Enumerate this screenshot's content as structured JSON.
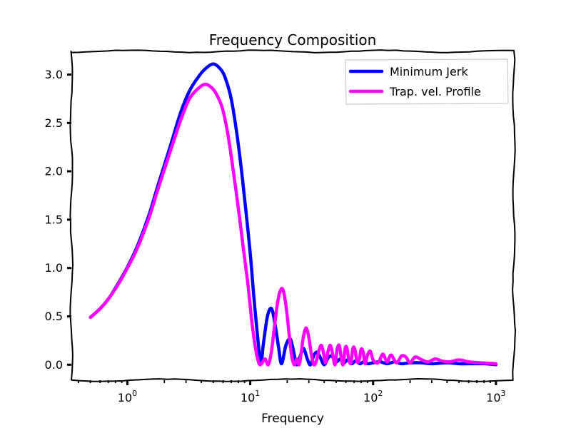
{
  "chart_data": {
    "type": "line",
    "title": "Frequency Composition",
    "xlabel": "Frequency",
    "ylabel": "",
    "xscale": "log",
    "xlim": [
      0.35,
      1400
    ],
    "ylim": [
      -0.16,
      3.24
    ],
    "x_tick_labels": [
      {
        "base": "10",
        "exp": "0"
      },
      {
        "base": "10",
        "exp": "1"
      },
      {
        "base": "10",
        "exp": "2"
      },
      {
        "base": "10",
        "exp": "3"
      }
    ],
    "y_ticks": [
      0.0,
      0.5,
      1.0,
      1.5,
      2.0,
      2.5,
      3.0
    ],
    "y_tick_labels": [
      "0.0",
      "0.5",
      "1.0",
      "1.5",
      "2.0",
      "2.5",
      "3.0"
    ],
    "legend_position": "top-right",
    "series": [
      {
        "name": "Minimum Jerk",
        "color": "#0000ff",
        "x": [
          0.5,
          0.6,
          0.7,
          0.85,
          1.0,
          1.2,
          1.5,
          1.8,
          2.2,
          2.7,
          3.2,
          3.8,
          4.4,
          5.0,
          5.6,
          6.2,
          7.0,
          7.8,
          8.5,
          9.2,
          10.0,
          10.7,
          11.5,
          12.2,
          12.8,
          13.8,
          14.9,
          16.0,
          17.0,
          18.0,
          19.5,
          21.0,
          22.0,
          23.0,
          24.0,
          26.0,
          27.0,
          28.0,
          29.5,
          31.0,
          33.0,
          35.0,
          37.0,
          40.0,
          43.0,
          46.0,
          50.0,
          54.0,
          58.0,
          62.0,
          67.0,
          72.0,
          78.0,
          84.0,
          90.0,
          100.0,
          115.0,
          130.0,
          150.0,
          170.0,
          200.0,
          250.0,
          300.0,
          400.0,
          500.0,
          600.0,
          800.0,
          1000.0
        ],
        "y": [
          0.49,
          0.58,
          0.68,
          0.85,
          1.01,
          1.22,
          1.55,
          1.88,
          2.23,
          2.6,
          2.83,
          2.98,
          3.07,
          3.11,
          3.07,
          2.98,
          2.75,
          2.38,
          2.0,
          1.6,
          1.15,
          0.7,
          0.28,
          0.02,
          0.22,
          0.5,
          0.58,
          0.4,
          0.18,
          0.01,
          0.2,
          0.27,
          0.2,
          0.08,
          0.0,
          0.12,
          0.17,
          0.13,
          0.04,
          0.0,
          0.1,
          0.13,
          0.08,
          0.0,
          0.07,
          0.09,
          0.03,
          0.06,
          0.02,
          0.05,
          0.01,
          0.04,
          0.01,
          0.03,
          0.01,
          0.02,
          0.03,
          0.01,
          0.03,
          0.01,
          0.02,
          0.02,
          0.01,
          0.02,
          0.01,
          0.01,
          0.01,
          0.0
        ]
      },
      {
        "name": "Trap. vel. Profile",
        "color": "#ff00ff",
        "x": [
          0.5,
          0.6,
          0.7,
          0.85,
          1.0,
          1.2,
          1.5,
          1.8,
          2.2,
          2.7,
          3.2,
          3.8,
          4.3,
          4.8,
          5.3,
          5.9,
          6.5,
          7.2,
          8.0,
          8.8,
          9.6,
          10.3,
          11.0,
          11.6,
          12.0,
          12.5,
          13.2,
          14.0,
          14.8,
          15.6,
          16.5,
          17.4,
          18.4,
          19.5,
          20.6,
          21.7,
          22.8,
          24.0,
          25.0,
          26.0,
          27.0,
          28.5,
          30.0,
          31.5,
          33.0,
          34.5,
          36.5,
          38.0,
          39.5,
          41.0,
          43.0,
          45.0,
          47.0,
          49.0,
          51.0,
          53.0,
          55.0,
          57.0,
          59.0,
          61.0,
          63.5,
          66.0,
          68.5,
          71.0,
          74.0,
          77.0,
          80.0,
          83.0,
          86.0,
          90.0,
          95.0,
          100.0,
          110.0,
          120.0,
          130.0,
          140.0,
          155.0,
          170.0,
          185.0,
          200.0,
          220.0,
          250.0,
          280.0,
          320.0,
          360.0,
          420.0,
          500.0,
          600.0,
          750.0,
          1000.0
        ],
        "y": [
          0.49,
          0.58,
          0.68,
          0.84,
          1.0,
          1.2,
          1.52,
          1.84,
          2.18,
          2.52,
          2.75,
          2.86,
          2.9,
          2.87,
          2.8,
          2.66,
          2.42,
          2.05,
          1.62,
          1.2,
          0.82,
          0.45,
          0.18,
          0.04,
          0.0,
          0.02,
          0.06,
          0.0,
          0.12,
          0.35,
          0.6,
          0.75,
          0.78,
          0.62,
          0.35,
          0.1,
          0.0,
          0.06,
          0.0,
          0.12,
          0.28,
          0.38,
          0.28,
          0.1,
          0.0,
          0.04,
          0.16,
          0.2,
          0.12,
          0.02,
          0.14,
          0.2,
          0.1,
          0.0,
          0.16,
          0.2,
          0.08,
          0.0,
          0.16,
          0.18,
          0.05,
          0.02,
          0.17,
          0.16,
          0.03,
          0.05,
          0.16,
          0.13,
          0.01,
          0.1,
          0.14,
          0.05,
          0.02,
          0.11,
          0.03,
          0.1,
          0.02,
          0.09,
          0.08,
          0.02,
          0.08,
          0.05,
          0.03,
          0.06,
          0.04,
          0.03,
          0.05,
          0.03,
          0.02,
          0.01
        ]
      }
    ]
  }
}
